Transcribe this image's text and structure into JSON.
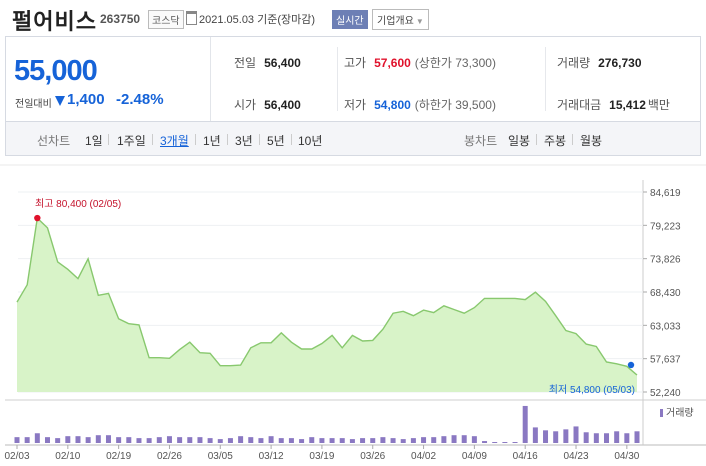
{
  "header": {
    "name": "펄어비스",
    "code": "263750",
    "market": "코스닥",
    "date_text": "2021.05.03  기준(장마감)",
    "realtime_badge": "실시간",
    "company_info_btn": "기업개요"
  },
  "quote": {
    "price": "55,000",
    "change_label": "전일대비",
    "change": "1,400",
    "change_pct": "-2.48%",
    "prev_label": "전일",
    "prev": "56,400",
    "high_label": "고가",
    "high": "57,600",
    "upper_limit": "(상한가 73,300)",
    "volume_label": "거래량",
    "volume": "276,730",
    "open_label": "시가",
    "open": "56,400",
    "low_label": "저가",
    "low": "54,800",
    "lower_limit": "(하한가 39,500)",
    "amount_label": "거래대금",
    "amount": "15,412",
    "amount_unit": "백만"
  },
  "tabs": {
    "line_label": "선차트",
    "periods": [
      "1일",
      "1주일",
      "3개월",
      "1년",
      "3년",
      "5년",
      "10년"
    ],
    "selected": "3개월",
    "candle_label": "봉차트",
    "candles": [
      "일봉",
      "주봉",
      "월봉"
    ]
  },
  "colors": {
    "accent_blue": "#1663d8",
    "up_red": "#e0112b",
    "line_green": "#88c86e",
    "area_green": "#d8f3c8",
    "volume_purple": "#8a78c2"
  },
  "chart_data": {
    "type": "area",
    "title": "",
    "xlabel": "",
    "ylabel": "",
    "ylim": [
      52240,
      84619
    ],
    "y_ticks": [
      "84,619",
      "79,223",
      "73,826",
      "68,430",
      "63,033",
      "57,637",
      "52,240"
    ],
    "x_ticks": [
      "02/03",
      "02/10",
      "02/19",
      "02/26",
      "03/05",
      "03/12",
      "03/19",
      "03/26",
      "04/02",
      "04/09",
      "04/16",
      "04/23",
      "04/30"
    ],
    "x_tick_index": [
      0,
      5,
      10,
      15,
      20,
      25,
      30,
      35,
      40,
      45,
      50,
      55,
      60
    ],
    "series": [
      {
        "values": [
          66800,
          69600,
          80400,
          78800,
          73300,
          72100,
          70600,
          73800,
          67900,
          68200,
          64100,
          63300,
          63100,
          57800,
          57800,
          57700,
          59100,
          60300,
          58600,
          58500,
          56500,
          56500,
          56600,
          59400,
          60200,
          60200,
          61800,
          60300,
          59200,
          59200,
          60100,
          61400,
          59400,
          61400,
          60500,
          60600,
          62400,
          65000,
          65300,
          64600,
          65500,
          65100,
          66200,
          65600,
          65000,
          65900,
          67400,
          67400,
          67400,
          67400,
          67200,
          68400,
          66900,
          64600,
          62200,
          61700,
          60000,
          59600,
          57100,
          56800,
          56400,
          55000
        ]
      }
    ],
    "volume_label": "거래량",
    "volume": [
      0.06,
      0.06,
      0.1,
      0.06,
      0.05,
      0.07,
      0.07,
      0.06,
      0.08,
      0.08,
      0.06,
      0.06,
      0.05,
      0.05,
      0.06,
      0.07,
      0.06,
      0.06,
      0.06,
      0.05,
      0.04,
      0.05,
      0.07,
      0.06,
      0.05,
      0.07,
      0.05,
      0.05,
      0.04,
      0.06,
      0.05,
      0.05,
      0.05,
      0.04,
      0.05,
      0.05,
      0.06,
      0.05,
      0.04,
      0.05,
      0.06,
      0.06,
      0.07,
      0.08,
      0.08,
      0.07,
      0.02,
      0.01,
      0.01,
      0.01,
      0.38,
      0.16,
      0.13,
      0.12,
      0.14,
      0.17,
      0.11,
      0.1,
      0.1,
      0.12,
      0.1,
      0.12
    ],
    "annotations": {
      "max_text": "최고  80,400 (02/05)",
      "max_index": 2,
      "min_text": "최저  54,800 (05/03)",
      "min_index": 61
    }
  }
}
